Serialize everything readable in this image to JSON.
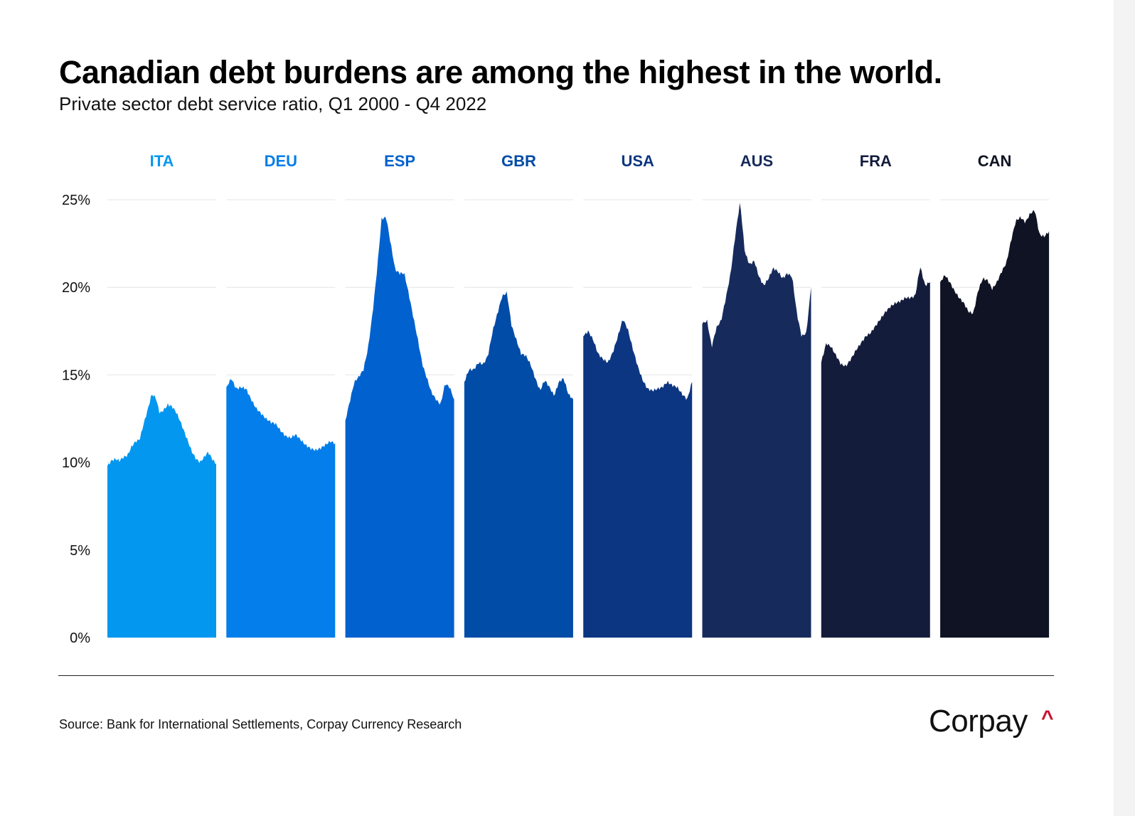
{
  "title": "Canadian debt burdens are among the highest in the world.",
  "subtitle": "Private sector debt service ratio, Q1 2000 - Q4 2022",
  "source": "Source: Bank for International Settlements, Corpay Currency Research",
  "logo": {
    "text": "Corpay",
    "accent": "^",
    "accent_color": "#c8102e"
  },
  "chart_data": {
    "type": "area",
    "y_ticks": [
      "25%",
      "20%",
      "15%",
      "10%",
      "5%",
      "0%"
    ],
    "ylim": [
      0,
      25
    ],
    "grid": true,
    "period": [
      "Q1 2000",
      "Q4 2022"
    ],
    "series": [
      {
        "name": "ITA",
        "color": "#0497f0",
        "values": [
          9.8,
          10.1,
          10.2,
          10.1,
          10.3,
          10.4,
          10.9,
          11.2,
          11.3,
          12.2,
          13.0,
          13.9,
          13.7,
          12.8,
          13.0,
          13.3,
          13.2,
          12.9,
          12.4,
          11.8,
          11.2,
          10.6,
          10.2,
          10.0,
          10.3,
          10.6,
          10.2,
          9.9
        ]
      },
      {
        "name": "DEU",
        "color": "#037eea",
        "values": [
          14.3,
          14.8,
          14.2,
          14.3,
          14.2,
          13.6,
          13.1,
          12.8,
          12.5,
          12.3,
          12.2,
          11.8,
          11.5,
          11.4,
          11.6,
          11.3,
          11.0,
          10.8,
          10.7,
          10.8,
          11.0,
          11.2,
          11.1
        ]
      },
      {
        "name": "ESP",
        "color": "#0161ce",
        "values": [
          12.4,
          13.5,
          14.6,
          14.9,
          15.3,
          16.5,
          18.5,
          21.0,
          23.9,
          24.0,
          22.5,
          21.0,
          20.8,
          20.8,
          19.6,
          18.3,
          17.0,
          15.6,
          14.8,
          14.0,
          13.6,
          13.3,
          14.5,
          14.3,
          13.6
        ]
      },
      {
        "name": "GBR",
        "color": "#004ca7",
        "values": [
          14.6,
          15.3,
          15.3,
          15.7,
          15.6,
          16.1,
          17.5,
          18.5,
          19.5,
          19.7,
          17.8,
          17.0,
          16.2,
          16.1,
          15.6,
          14.8,
          14.1,
          14.7,
          14.3,
          13.8,
          14.6,
          14.8,
          13.9,
          13.6
        ]
      },
      {
        "name": "USA",
        "color": "#0c3681",
        "values": [
          17.2,
          17.5,
          17.0,
          16.2,
          15.9,
          15.7,
          16.3,
          17.2,
          18.2,
          17.6,
          16.5,
          15.5,
          14.7,
          14.2,
          14.1,
          14.2,
          14.3,
          14.6,
          14.4,
          14.3,
          13.9,
          13.6,
          14.6
        ]
      },
      {
        "name": "AUS",
        "color": "#172a5c",
        "values": [
          17.9,
          18.1,
          16.6,
          17.7,
          18.1,
          19.4,
          20.8,
          23.0,
          24.9,
          22.0,
          21.3,
          21.5,
          20.6,
          20.1,
          20.5,
          21.1,
          20.9,
          20.5,
          20.8,
          20.6,
          18.5,
          17.2,
          17.4,
          20.0
        ]
      },
      {
        "name": "FRA",
        "color": "#141c3c",
        "values": [
          15.7,
          16.8,
          16.6,
          16.1,
          15.6,
          15.5,
          15.9,
          16.4,
          16.8,
          17.2,
          17.4,
          17.8,
          18.2,
          18.6,
          18.9,
          19.1,
          19.2,
          19.4,
          19.4,
          19.5,
          21.2,
          20.1,
          20.3
        ]
      },
      {
        "name": "CAN",
        "color": "#0f1323",
        "values": [
          20.3,
          20.7,
          20.3,
          19.8,
          19.4,
          19.1,
          18.6,
          18.5,
          19.8,
          20.5,
          20.4,
          19.9,
          20.3,
          20.9,
          21.4,
          22.7,
          23.8,
          24.0,
          23.7,
          24.2,
          24.4,
          23.0,
          22.9,
          23.2
        ]
      }
    ]
  }
}
